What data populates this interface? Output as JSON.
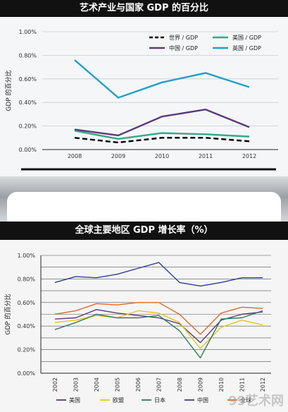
{
  "chart_data": [
    {
      "type": "line",
      "title": "艺术产业与国家 GDP 的百分比",
      "ylabel": "GDP 的百分比",
      "x": [
        "2008",
        "2009",
        "2010",
        "2011",
        "2012"
      ],
      "yticks": [
        "1.00%",
        "0.80%",
        "0.60%",
        "0.40%",
        "0.20%",
        "0.00%"
      ],
      "ylim": [
        0,
        1.0
      ],
      "legend": "top-right",
      "series": [
        {
          "name": "世界 / GDP",
          "color": "#000000",
          "dashed": true,
          "values": [
            0.1,
            0.06,
            0.1,
            0.1,
            0.07
          ]
        },
        {
          "name": "美国 / GDP",
          "color": "#3aa58a",
          "values": [
            0.16,
            0.09,
            0.14,
            0.13,
            0.11
          ]
        },
        {
          "name": "中国 / GDP",
          "color": "#5b3a78",
          "values": [
            0.17,
            0.12,
            0.28,
            0.34,
            0.19
          ]
        },
        {
          "name": "英国 / GDP",
          "color": "#22a0c8",
          "values": [
            0.76,
            0.44,
            0.57,
            0.65,
            0.53
          ]
        }
      ]
    },
    {
      "type": "line",
      "title": "全球主要地区 GDP 增长率（%）",
      "ylabel": "GDP 的百分比",
      "x": [
        "2002",
        "2003",
        "2004",
        "2005",
        "2006",
        "2007",
        "2008",
        "2009",
        "2010",
        "2011",
        "2012"
      ],
      "yticks": [
        "1.00%",
        "0.80%",
        "0.60%",
        "0.40%",
        "0.20%",
        "0.00%"
      ],
      "ylim": [
        0,
        1.0
      ],
      "legend": "bottom",
      "series": [
        {
          "name": "美国",
          "color": "#5b3a78",
          "values": [
            0.46,
            0.47,
            0.54,
            0.51,
            0.49,
            0.47,
            0.42,
            0.26,
            0.45,
            0.5,
            0.52
          ]
        },
        {
          "name": "欧盟",
          "color": "#e6c619",
          "values": [
            0.43,
            0.45,
            0.49,
            0.47,
            0.53,
            0.51,
            0.43,
            0.21,
            0.39,
            0.45,
            0.41
          ]
        },
        {
          "name": "日本",
          "color": "#2e7d5b",
          "values": [
            0.37,
            0.43,
            0.5,
            0.47,
            0.47,
            0.49,
            0.36,
            0.13,
            0.46,
            0.47,
            0.53
          ]
        },
        {
          "name": "中国",
          "color": "#2f3f8f",
          "values": [
            0.77,
            0.82,
            0.81,
            0.84,
            0.89,
            0.94,
            0.77,
            0.74,
            0.77,
            0.81,
            0.81
          ]
        },
        {
          "name": "全球",
          "color": "#e06a2a",
          "values": [
            0.5,
            0.53,
            0.59,
            0.58,
            0.6,
            0.6,
            0.5,
            0.33,
            0.51,
            0.56,
            0.55
          ]
        }
      ]
    }
  ],
  "watermark": "99艺术网"
}
